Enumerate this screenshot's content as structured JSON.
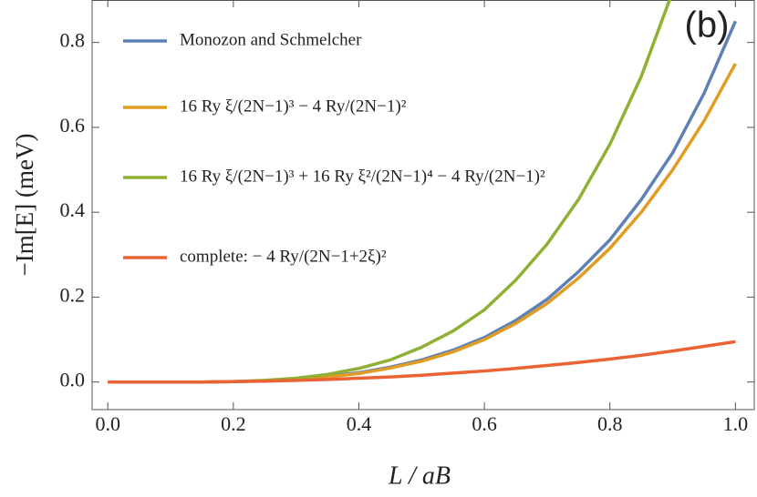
{
  "chart_data": {
    "type": "line",
    "annotation": "(b)",
    "x_label": "L / aB",
    "y_label": "−Im[E] (meV)",
    "x": [
      0,
      0.05,
      0.1,
      0.15,
      0.2,
      0.25,
      0.3,
      0.35,
      0.4,
      0.45,
      0.5,
      0.55,
      0.6,
      0.65,
      0.7,
      0.75,
      0.8,
      0.85,
      0.9,
      0.95,
      1.0
    ],
    "series": [
      {
        "name": "Monozon and Schmelcher",
        "color": "#5e81b5",
        "values": [
          0,
          0,
          0,
          0,
          0.001,
          0.003,
          0.007,
          0.013,
          0.022,
          0.035,
          0.052,
          0.075,
          0.105,
          0.145,
          0.195,
          0.26,
          0.335,
          0.43,
          0.54,
          0.68,
          0.85
        ]
      },
      {
        "name": "16 Ry ξ/(2N−1)³ − 4 Ry/(2N−1)²",
        "color": "#e19c24",
        "values": [
          0,
          0,
          0,
          0,
          0.001,
          0.003,
          0.006,
          0.012,
          0.02,
          0.033,
          0.049,
          0.071,
          0.1,
          0.138,
          0.185,
          0.245,
          0.315,
          0.4,
          0.5,
          0.615,
          0.75
        ]
      },
      {
        "name": "16 Ry ξ/(2N−1)³ + 16 Ry ξ²/(2N−1)⁴ − 4 Ry/(2N−1)²",
        "color": "#8fb032",
        "values": [
          0,
          0,
          0,
          0,
          0.001,
          0.004,
          0.009,
          0.018,
          0.032,
          0.052,
          0.082,
          0.12,
          0.17,
          0.24,
          0.325,
          0.43,
          0.56,
          0.72,
          0.92,
          null,
          null
        ]
      },
      {
        "name": "complete: − 4 Ry/(2N−1+2ξ)²",
        "color": "#eb6235",
        "values": [
          0,
          0,
          0,
          0,
          0.001,
          0.002,
          0.004,
          0.006,
          0.009,
          0.012,
          0.016,
          0.021,
          0.026,
          0.032,
          0.039,
          0.046,
          0.054,
          0.063,
          0.073,
          0.084,
          0.095
        ]
      }
    ],
    "xlim": [
      -0.025,
      1.03
    ],
    "ylim": [
      -0.065,
      0.9
    ],
    "xticks": [
      {
        "value": 0,
        "label": "0.0"
      },
      0.2,
      0.4,
      0.6,
      0.8,
      {
        "value": 1,
        "label": "1.0"
      }
    ],
    "yticks": [
      {
        "value": 0,
        "label": "0.0"
      },
      0.2,
      0.4,
      0.6,
      0.8
    ],
    "grid": false,
    "legend": "upper left"
  }
}
